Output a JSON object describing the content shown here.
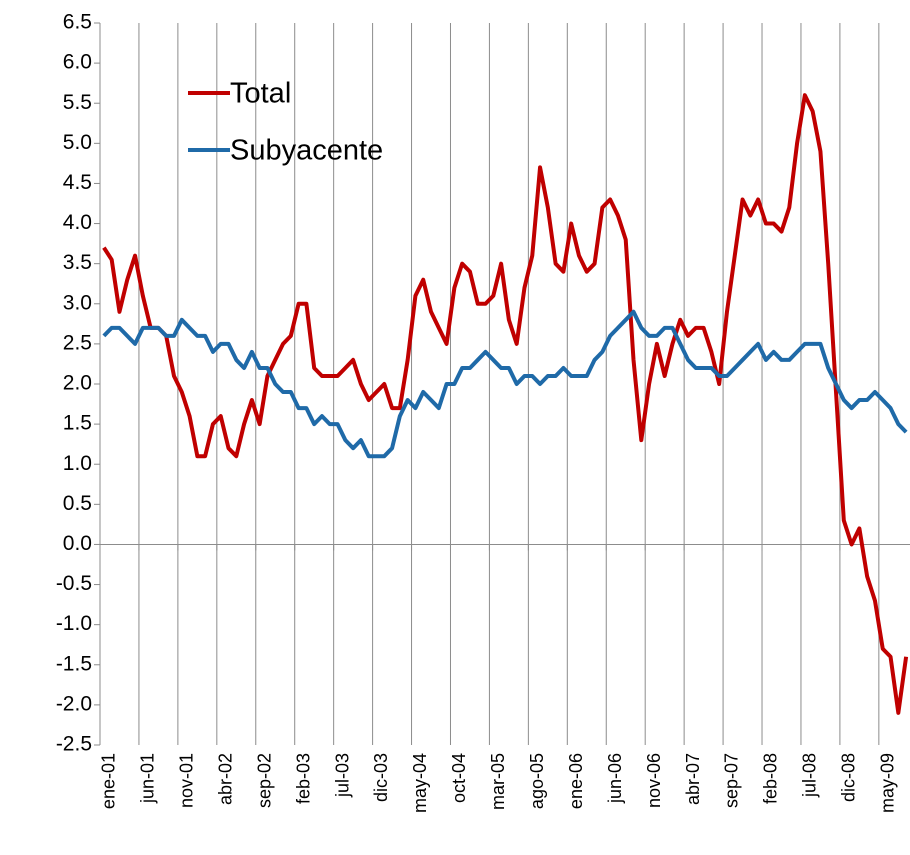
{
  "chart_data": {
    "type": "line",
    "categories": [
      "ene-01",
      null,
      null,
      null,
      null,
      "jun-01",
      null,
      null,
      null,
      null,
      "nov-01",
      null,
      null,
      null,
      null,
      "abr-02",
      null,
      null,
      null,
      null,
      "sep-02",
      null,
      null,
      null,
      null,
      "feb-03",
      null,
      null,
      null,
      null,
      "jul-03",
      null,
      null,
      null,
      null,
      "dic-03",
      null,
      null,
      null,
      null,
      "may-04",
      null,
      null,
      null,
      null,
      "oct-04",
      null,
      null,
      null,
      null,
      "mar-05",
      null,
      null,
      null,
      null,
      "ago-05",
      null,
      null,
      null,
      null,
      "ene-06",
      null,
      null,
      null,
      null,
      "jun-06",
      null,
      null,
      null,
      null,
      "nov-06",
      null,
      null,
      null,
      null,
      "abr-07",
      null,
      null,
      null,
      null,
      "sep-07",
      null,
      null,
      null,
      null,
      "feb-08",
      null,
      null,
      null,
      null,
      "jul-08",
      null,
      null,
      null,
      null,
      "dic-08",
      null,
      null,
      null,
      null,
      "may-09",
      null,
      null,
      null
    ],
    "series": [
      {
        "name": "Total",
        "color": "#c00000",
        "values": [
          3.7,
          3.55,
          2.9,
          3.3,
          3.6,
          3.1,
          2.7,
          2.7,
          2.6,
          2.1,
          1.9,
          1.6,
          1.1,
          1.1,
          1.5,
          1.6,
          1.2,
          1.1,
          1.5,
          1.8,
          1.5,
          2.1,
          2.3,
          2.5,
          2.6,
          3.0,
          3.0,
          2.2,
          2.1,
          2.1,
          2.1,
          2.2,
          2.3,
          2.0,
          1.8,
          1.9,
          2.0,
          1.7,
          1.7,
          2.3,
          3.1,
          3.3,
          2.9,
          2.7,
          2.5,
          3.2,
          3.5,
          3.4,
          3.0,
          3.0,
          3.1,
          3.5,
          2.8,
          2.5,
          3.2,
          3.6,
          4.7,
          4.2,
          3.5,
          3.4,
          4.0,
          3.6,
          3.4,
          3.5,
          4.2,
          4.3,
          4.1,
          3.8,
          2.3,
          1.3,
          2.0,
          2.5,
          2.1,
          2.5,
          2.8,
          2.6,
          2.7,
          2.7,
          2.4,
          2.0,
          2.9,
          3.6,
          4.3,
          4.1,
          4.3,
          4.0,
          4.0,
          3.9,
          4.2,
          5.0,
          5.6,
          5.4,
          4.9,
          3.5,
          1.9,
          0.3,
          0.0,
          0.2,
          -0.4,
          -0.7,
          -1.3,
          -1.4,
          -2.1,
          -1.4
        ]
      },
      {
        "name": "Subyacente",
        "color": "#1f6aa8",
        "values": [
          2.6,
          2.7,
          2.7,
          2.6,
          2.5,
          2.7,
          2.7,
          2.7,
          2.6,
          2.6,
          2.8,
          2.7,
          2.6,
          2.6,
          2.4,
          2.5,
          2.5,
          2.3,
          2.2,
          2.4,
          2.2,
          2.2,
          2.0,
          1.9,
          1.9,
          1.7,
          1.7,
          1.5,
          1.6,
          1.5,
          1.5,
          1.3,
          1.2,
          1.3,
          1.1,
          1.1,
          1.1,
          1.2,
          1.6,
          1.8,
          1.7,
          1.9,
          1.8,
          1.7,
          2.0,
          2.0,
          2.2,
          2.2,
          2.3,
          2.4,
          2.3,
          2.2,
          2.2,
          2.0,
          2.1,
          2.1,
          2.0,
          2.1,
          2.1,
          2.2,
          2.1,
          2.1,
          2.1,
          2.3,
          2.4,
          2.6,
          2.7,
          2.8,
          2.9,
          2.7,
          2.6,
          2.6,
          2.7,
          2.7,
          2.5,
          2.3,
          2.2,
          2.2,
          2.2,
          2.1,
          2.1,
          2.2,
          2.3,
          2.4,
          2.5,
          2.3,
          2.4,
          2.3,
          2.3,
          2.4,
          2.5,
          2.5,
          2.5,
          2.2,
          2.0,
          1.8,
          1.7,
          1.8,
          1.8,
          1.9,
          1.8,
          1.7,
          1.5,
          1.4
        ]
      }
    ],
    "ylim": [
      -2.5,
      6.5
    ],
    "yticks": [
      {
        "value": -2.5,
        "label": "-2.5"
      },
      {
        "value": -2,
        "label": "-2.0"
      },
      {
        "value": -1.5,
        "label": "-1.5"
      },
      {
        "value": -1,
        "label": "-1.0"
      },
      {
        "value": -0.5,
        "label": "-0.5"
      },
      {
        "value": 0,
        "label": "0.0"
      },
      0.5,
      {
        "value": 1,
        "label": "1.0"
      },
      1.5,
      {
        "value": 2,
        "label": "2.0"
      },
      2.5,
      {
        "value": 3,
        "label": "3.0"
      },
      3.5,
      {
        "value": 4,
        "label": "4.0"
      },
      4.5,
      {
        "value": 5,
        "label": "5.0"
      },
      5.5,
      {
        "value": 6,
        "label": "6.0"
      },
      6.5
    ],
    "grid": true,
    "legend": "upper left"
  }
}
